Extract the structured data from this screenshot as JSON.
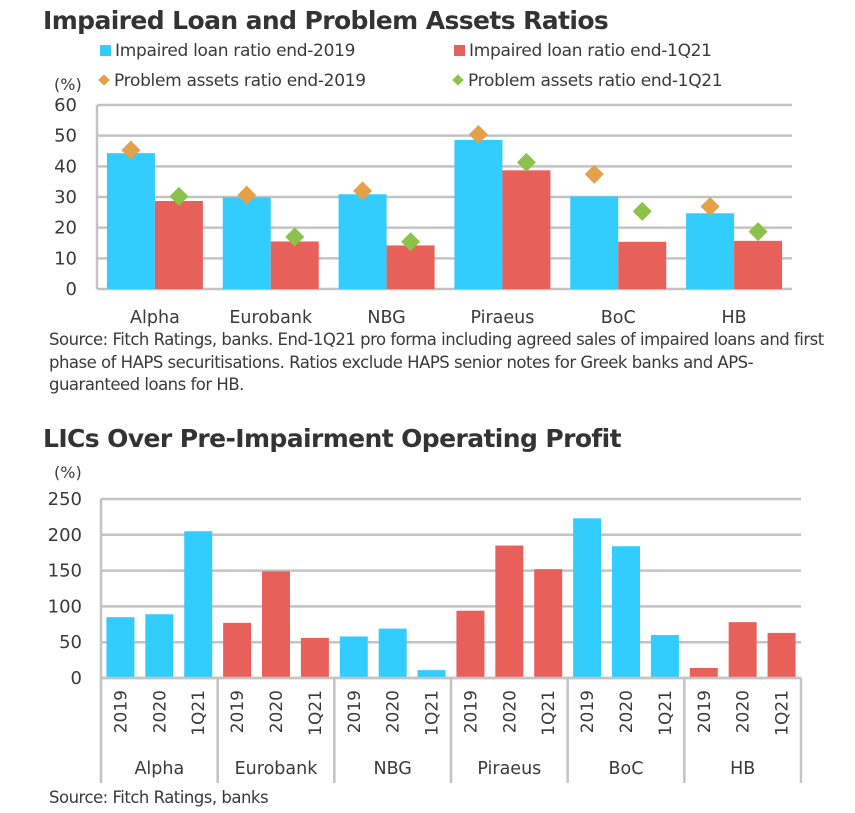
{
  "colors": {
    "impaired_2019": "#33CCFF",
    "impaired_1q21": "#E8605A",
    "problem_2019": "#E5A04A",
    "problem_1q21": "#8BC34A",
    "grid": "#C3C3C3",
    "text": "#3a3a3a"
  },
  "chart_data": [
    {
      "type": "bar",
      "title": "Impaired Loan and Problem Assets Ratios",
      "ylabel": "(%)",
      "xlabel": "",
      "ylim": [
        0,
        60
      ],
      "yticks": [
        0,
        10,
        20,
        30,
        40,
        50,
        60
      ],
      "grid": true,
      "legend_position": "top",
      "categories": [
        "Alpha",
        "Eurobank",
        "NBG",
        "Piraeus",
        "BoC",
        "HB"
      ],
      "series": [
        {
          "name": "Impaired loan ratio end-2019",
          "kind": "bar",
          "color_key": "impaired_2019",
          "values": [
            44.3,
            29.9,
            30.9,
            48.6,
            30.2,
            24.7
          ]
        },
        {
          "name": "Impaired loan ratio end-1Q21",
          "kind": "bar",
          "color_key": "impaired_1q21",
          "values": [
            28.7,
            15.5,
            14.2,
            38.7,
            15.4,
            15.7
          ]
        },
        {
          "name": "Problem assets ratio end-2019",
          "kind": "marker",
          "color_key": "problem_2019",
          "values": [
            45.3,
            30.6,
            32.0,
            50.4,
            37.4,
            26.9
          ]
        },
        {
          "name": "Problem assets ratio end-1Q21",
          "kind": "marker",
          "color_key": "problem_1q21",
          "values": [
            30.2,
            17.0,
            15.4,
            41.3,
            25.3,
            18.7
          ]
        }
      ],
      "note": "Source: Fitch Ratings, banks. End-1Q21 pro forma including agreed sales of impaired loans and first phase of HAPS securitisations. Ratios exclude HAPS senior notes for Greek banks and APS-guaranteed loans for HB."
    },
    {
      "type": "bar",
      "title": "LICs Over Pre-Impairment Operating Profit",
      "ylabel": "(%)",
      "xlabel": "",
      "ylim": [
        0,
        250
      ],
      "yticks": [
        0,
        50,
        100,
        150,
        200,
        250
      ],
      "grid": true,
      "legend_position": "none",
      "groups": [
        {
          "name": "Alpha",
          "color_key": "impaired_2019",
          "periods": [
            "2019",
            "2020",
            "1Q21"
          ],
          "values": [
            85,
            89,
            205
          ]
        },
        {
          "name": "Eurobank",
          "color_key": "impaired_1q21",
          "periods": [
            "2019",
            "2020",
            "1Q21"
          ],
          "values": [
            77,
            149,
            56
          ]
        },
        {
          "name": "NBG",
          "color_key": "impaired_2019",
          "periods": [
            "2019",
            "2020",
            "1Q21"
          ],
          "values": [
            58,
            69,
            11
          ]
        },
        {
          "name": "Piraeus",
          "color_key": "impaired_1q21",
          "periods": [
            "2019",
            "2020",
            "1Q21"
          ],
          "values": [
            94,
            185,
            152
          ]
        },
        {
          "name": "BoC",
          "color_key": "impaired_2019",
          "periods": [
            "2019",
            "2020",
            "1Q21"
          ],
          "values": [
            223,
            184,
            60
          ]
        },
        {
          "name": "HB",
          "color_key": "impaired_1q21",
          "periods": [
            "2019",
            "2020",
            "1Q21"
          ],
          "values": [
            14,
            78,
            63
          ]
        }
      ],
      "note": "Source: Fitch Ratings, banks"
    }
  ]
}
